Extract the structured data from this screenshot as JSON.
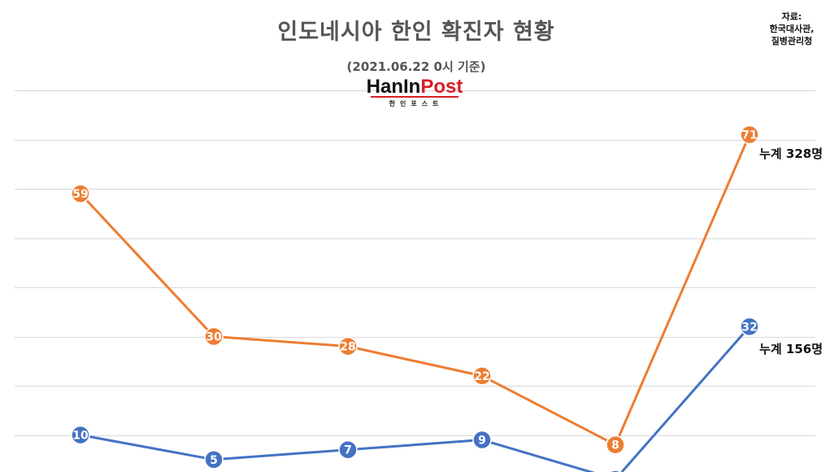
{
  "chart_data": {
    "type": "line",
    "title": "인도네시아 한인 확진자 현황",
    "subtitle": "(2021.06.22 0시 기준)",
    "source": [
      "자료:",
      "한국대사관,",
      "질병관리청"
    ],
    "logo": {
      "main_black": "HanIn",
      "main_red": "Post",
      "sub": "한인포스트"
    },
    "ylim": [
      0,
      80
    ],
    "grid": true,
    "series": [
      {
        "values": [
          59,
          30,
          28,
          22,
          8,
          71
        ],
        "color": "#ED7D31",
        "total_label": "누계 328명"
      },
      {
        "values": [
          10,
          5,
          7,
          9,
          1,
          32
        ],
        "color": "#4472C4",
        "total_label": "누계 156명"
      }
    ],
    "data_labels": [
      [
        "59",
        "30",
        "28",
        "22",
        "8",
        "71"
      ],
      [
        "10",
        "5",
        "7",
        "9",
        "",
        "32"
      ]
    ]
  }
}
